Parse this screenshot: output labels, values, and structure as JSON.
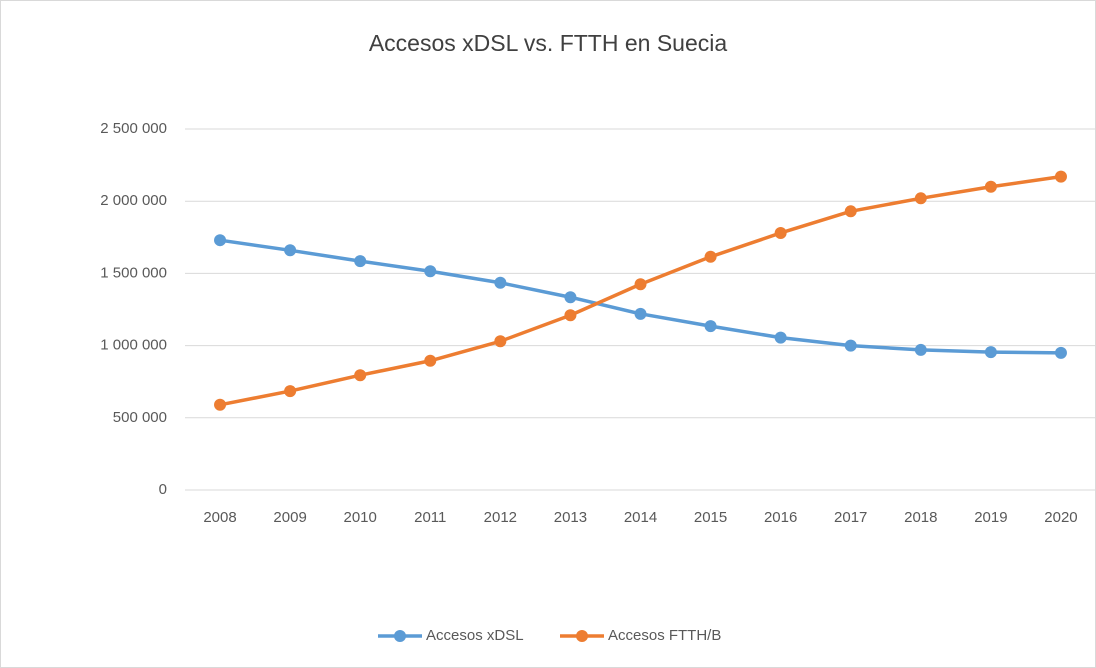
{
  "chart_data": {
    "type": "line",
    "title": "Accesos xDSL vs. FTTH en Suecia",
    "categories": [
      "2008",
      "2009",
      "2010",
      "2011",
      "2012",
      "2013",
      "2014",
      "2015",
      "2016",
      "2017",
      "2018",
      "2019",
      "2020"
    ],
    "series": [
      {
        "name": "Accesos xDSL",
        "color": "#5b9bd5",
        "values": [
          1730000,
          1660000,
          1585000,
          1515000,
          1435000,
          1335000,
          1220000,
          1135000,
          1055000,
          1000000,
          970000,
          955000,
          950000
        ]
      },
      {
        "name": "Accesos FTTH/B",
        "color": "#ed7d31",
        "values": [
          590000,
          685000,
          795000,
          895000,
          1030000,
          1210000,
          1425000,
          1615000,
          1780000,
          1930000,
          2020000,
          2100000,
          2170000
        ]
      }
    ],
    "ylim": [
      0,
      2500000
    ],
    "yticks": [
      0,
      {
        "value": 500000,
        "label": "500 000"
      },
      {
        "value": 1000000,
        "label": "1 000 000"
      },
      {
        "value": 1500000,
        "label": "1 500 000"
      },
      {
        "value": 2000000,
        "label": "2 000 000"
      },
      {
        "value": 2500000,
        "label": "2 500 000"
      }
    ],
    "grid": true,
    "legend": "bottom"
  }
}
